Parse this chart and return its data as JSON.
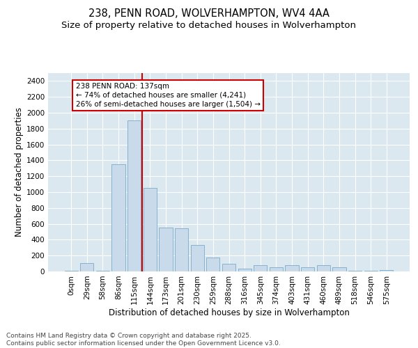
{
  "title1": "238, PENN ROAD, WOLVERHAMPTON, WV4 4AA",
  "title2": "Size of property relative to detached houses in Wolverhampton",
  "xlabel": "Distribution of detached houses by size in Wolverhampton",
  "ylabel": "Number of detached properties",
  "bin_labels": [
    "0sqm",
    "29sqm",
    "58sqm",
    "86sqm",
    "115sqm",
    "144sqm",
    "173sqm",
    "201sqm",
    "230sqm",
    "259sqm",
    "288sqm",
    "316sqm",
    "345sqm",
    "374sqm",
    "403sqm",
    "431sqm",
    "460sqm",
    "489sqm",
    "518sqm",
    "546sqm",
    "575sqm"
  ],
  "bar_values": [
    5,
    105,
    5,
    1350,
    1900,
    1050,
    550,
    540,
    330,
    175,
    100,
    35,
    75,
    50,
    75,
    50,
    75,
    50,
    5,
    5,
    20
  ],
  "bar_color": "#c9daea",
  "bar_edge_color": "#7aaac8",
  "vline_color": "#cc0000",
  "vline_pos": 4.5,
  "ylim": [
    0,
    2500
  ],
  "yticks": [
    0,
    200,
    400,
    600,
    800,
    1000,
    1200,
    1400,
    1600,
    1800,
    2000,
    2200,
    2400
  ],
  "background_color": "#dce8f0",
  "grid_color": "#ffffff",
  "fig_bg": "#ffffff",
  "annotation_line1": "238 PENN ROAD: 137sqm",
  "annotation_line2": "← 74% of detached houses are smaller (4,241)",
  "annotation_line3": "26% of semi-detached houses are larger (1,504) →",
  "annot_edge_color": "#cc0000",
  "footer": "Contains HM Land Registry data © Crown copyright and database right 2025.\nContains public sector information licensed under the Open Government Licence v3.0.",
  "title_fontsize": 10.5,
  "subtitle_fontsize": 9.5,
  "axis_label_fontsize": 8.5,
  "tick_fontsize": 7.5,
  "annot_fontsize": 7.5,
  "footer_fontsize": 6.5
}
